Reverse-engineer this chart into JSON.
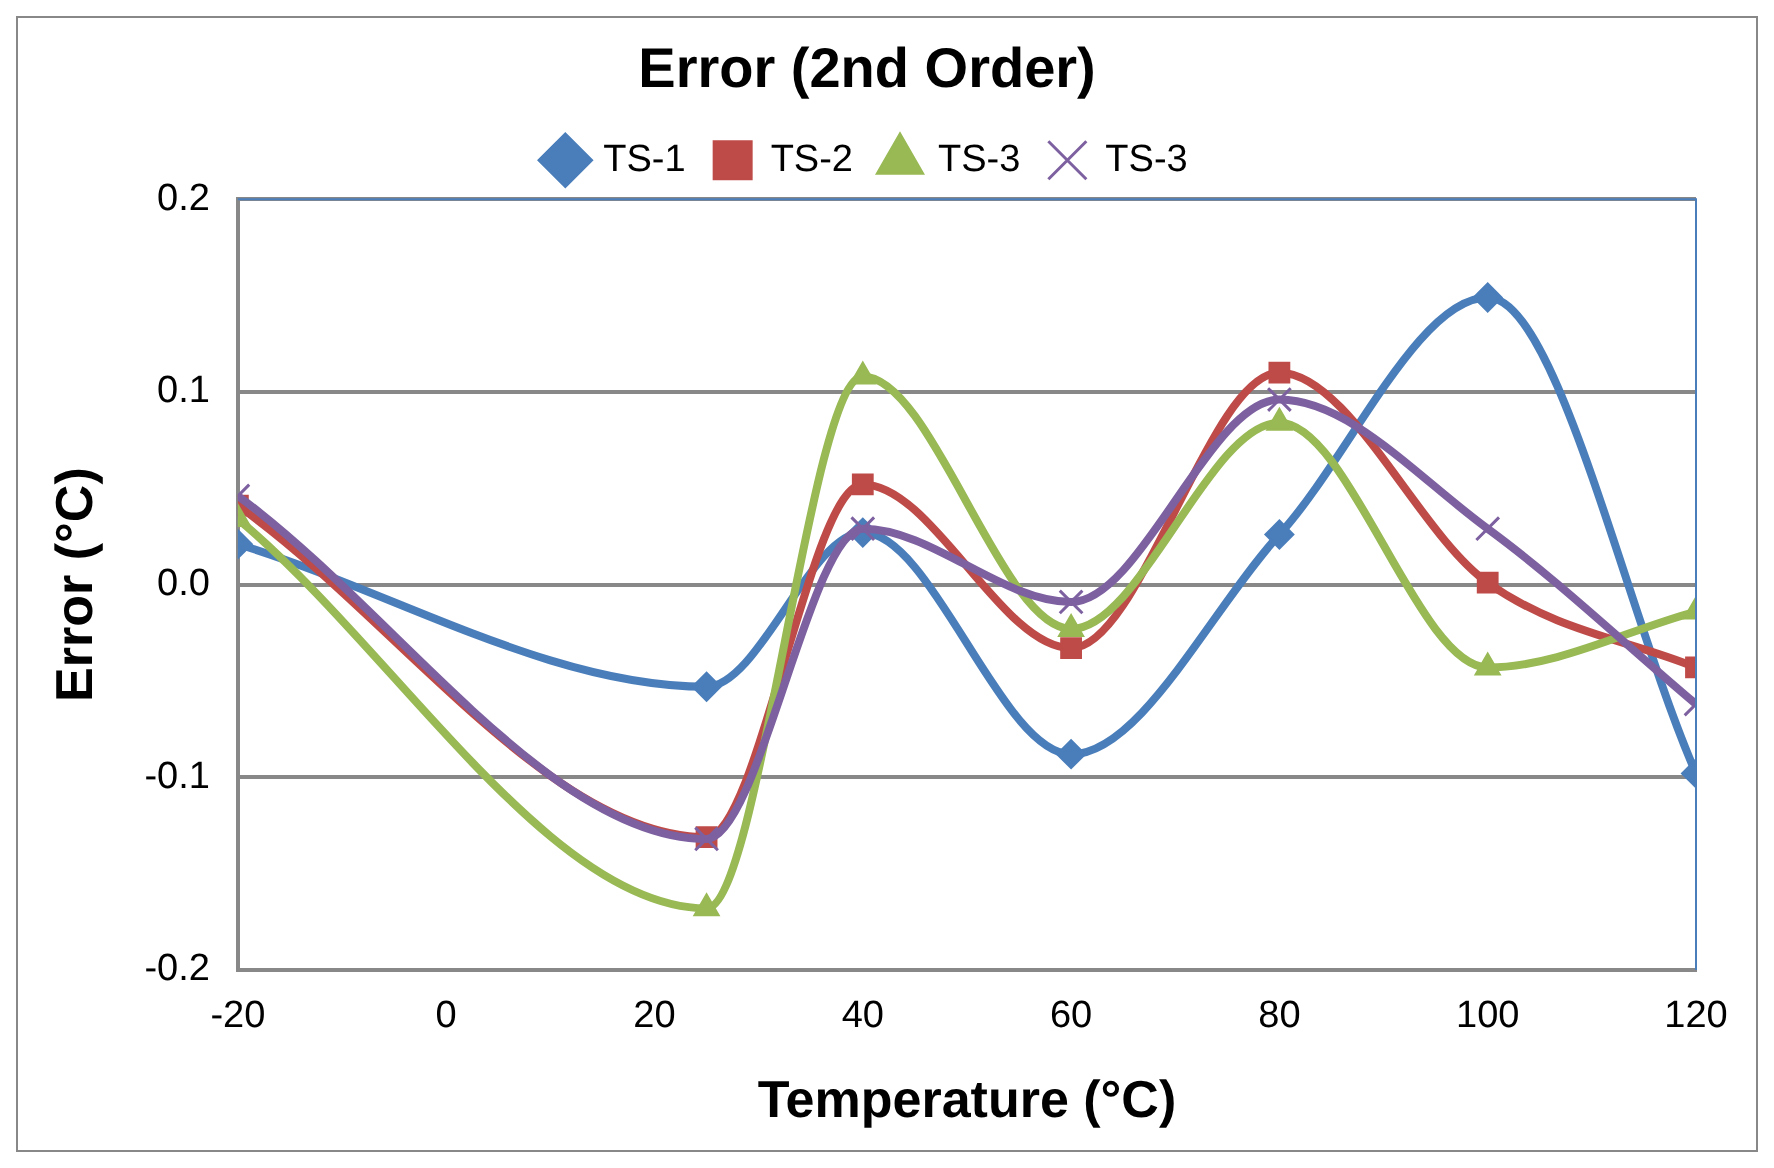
{
  "chart_data": {
    "type": "line",
    "title": "Error (2nd Order)",
    "xlabel": "Temperature (°C)",
    "ylabel": "Error (°C)",
    "x": [
      -20,
      25,
      40,
      60,
      80,
      100,
      120
    ],
    "series": [
      {
        "name": "TS-1",
        "color": "#4a7ebb",
        "marker": "diamond",
        "values": [
          0.021,
          -0.053,
          0.027,
          -0.088,
          0.026,
          0.149,
          -0.098
        ]
      },
      {
        "name": "TS-2",
        "color": "#be4b48",
        "marker": "square",
        "values": [
          0.041,
          -0.131,
          0.052,
          -0.033,
          0.11,
          0.001,
          -0.043
        ]
      },
      {
        "name": "TS-3",
        "color": "#98b954",
        "marker": "triangle",
        "values": [
          0.034,
          -0.168,
          0.108,
          -0.023,
          0.084,
          -0.043,
          -0.014
        ]
      },
      {
        "name": "TS-3",
        "color": "#7d60a0",
        "marker": "cross",
        "values": [
          0.046,
          -0.132,
          0.029,
          -0.009,
          0.096,
          0.029,
          -0.062
        ]
      }
    ],
    "xlim": [
      -20,
      120
    ],
    "xticks": [
      -20,
      0,
      20,
      40,
      60,
      80,
      100,
      120
    ],
    "ylim": [
      -0.2,
      0.2
    ],
    "yticks": [
      -0.2,
      -0.1,
      {
        "value": 0,
        "label": "0.0"
      },
      0.1,
      0.2
    ],
    "grid": "y",
    "legend": "top",
    "line_style": "solid"
  }
}
